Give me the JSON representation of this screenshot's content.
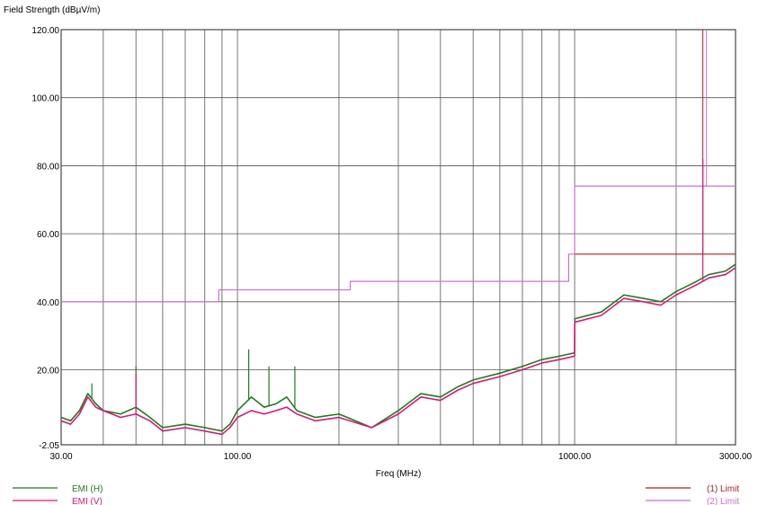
{
  "chart_data": {
    "type": "line",
    "title": "",
    "ylabel": "Field Strength (dBµV/m)",
    "xlabel": "Freq (MHz)",
    "x_scale": "log",
    "xlim": [
      30,
      3000
    ],
    "ylim": [
      -2.05,
      120
    ],
    "x_tick_labels": [
      "30.00",
      "100.00",
      "1000.00",
      "3000.00"
    ],
    "x_tick_values": [
      30,
      100,
      1000,
      3000
    ],
    "y_tick_labels": [
      "120.00",
      "100.00",
      "80.00",
      "60.00",
      "40.00",
      "20.00",
      "-2.05"
    ],
    "y_tick_values": [
      120,
      100,
      80,
      60,
      40,
      20,
      -2.05
    ],
    "grid": true,
    "legend_position": "bottom",
    "series": [
      {
        "name": "EMI (H)",
        "color": "#1e7d1e",
        "x": [
          30,
          32,
          34,
          36,
          38,
          40,
          45,
          50,
          55,
          60,
          70,
          80,
          90,
          95,
          100,
          110,
          120,
          130,
          140,
          150,
          170,
          200,
          250,
          300,
          350,
          400,
          450,
          500,
          600,
          700,
          800,
          900,
          1000,
          1001,
          1200,
          1400,
          1600,
          1800,
          2000,
          2300,
          2500,
          2800,
          3000
        ],
        "y": [
          6,
          5,
          8,
          13,
          10,
          8,
          7,
          9,
          6,
          3,
          4,
          3,
          2,
          4,
          8,
          12,
          9,
          10,
          12,
          8,
          6,
          7,
          3,
          8,
          13,
          12,
          15,
          17,
          19,
          21,
          23,
          24,
          25,
          35,
          37,
          42,
          41,
          40,
          43,
          46,
          48,
          49,
          51
        ]
      },
      {
        "name": "EMI (V)",
        "color": "#e0157a",
        "x": [
          30,
          32,
          34,
          36,
          38,
          40,
          45,
          50,
          55,
          60,
          70,
          80,
          90,
          95,
          100,
          110,
          120,
          130,
          140,
          150,
          170,
          200,
          250,
          300,
          350,
          400,
          450,
          500,
          600,
          700,
          800,
          900,
          1000,
          1001,
          1200,
          1400,
          1600,
          1800,
          2000,
          2300,
          2500,
          2800,
          3000
        ],
        "y": [
          5,
          4,
          7,
          12,
          9,
          8,
          6,
          7,
          5,
          2,
          3,
          2,
          1,
          3,
          6,
          8,
          7,
          8,
          9,
          7,
          5,
          6,
          3,
          7,
          12,
          11,
          14,
          16,
          18,
          20,
          22,
          23,
          24,
          34,
          36,
          41,
          40,
          39,
          42,
          45,
          47,
          48,
          50
        ]
      },
      {
        "name": "(1) Limit",
        "color": "#b01e1e",
        "x": [
          1000,
          2400,
          2400,
          3000
        ],
        "y": [
          54,
          54,
          54,
          54
        ]
      },
      {
        "name": "(2) Limit",
        "color": "#cf6fd0",
        "x": [
          30,
          88,
          88,
          216,
          216,
          960,
          960,
          1000,
          1000,
          2400,
          2400,
          3000
        ],
        "y": [
          40,
          40,
          43.5,
          43.5,
          46,
          46,
          54,
          54,
          74,
          74,
          74,
          74
        ]
      }
    ],
    "spikes": [
      {
        "series": "EMI (H)",
        "x": 37,
        "y": 16
      },
      {
        "series": "EMI (H)",
        "x": 50,
        "y": 21
      },
      {
        "series": "EMI (H)",
        "x": 108,
        "y": 26
      },
      {
        "series": "EMI (H)",
        "x": 124,
        "y": 21
      },
      {
        "series": "EMI (H)",
        "x": 148,
        "y": 21
      },
      {
        "series": "EMI (V)",
        "x": 50,
        "y": 19
      },
      {
        "series": "EMI (V)",
        "x": 2400,
        "y": 82
      }
    ]
  }
}
